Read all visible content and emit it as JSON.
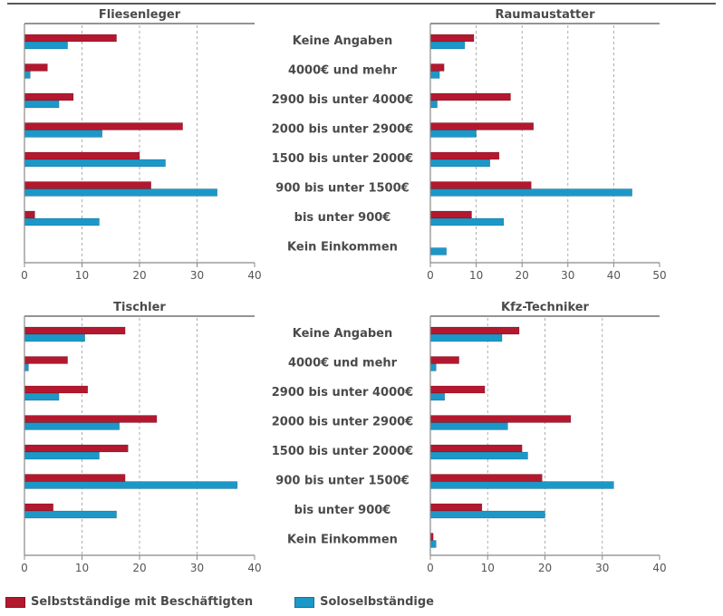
{
  "colors": {
    "selbststaendige": "#b3182f",
    "solo": "#1c98c8",
    "axis": "#888888",
    "grid": "#9a9a9a",
    "title_rule": "#555555"
  },
  "legend": {
    "selbststaendige": "Selbstständige mit Beschäftigten",
    "solo": "Soloselbständige"
  },
  "chart_data": [
    {
      "type": "bar",
      "title": "Fliesenleger",
      "orientation": "horizontal",
      "categories": [
        "Keine Angaben",
        "4000€ und mehr",
        "2900 bis unter 4000€",
        "2000 bis unter 2900€",
        "1500 bis unter 2000€",
        "900 bis unter 1500€",
        "bis unter 900€",
        "Kein Einkommen"
      ],
      "series": [
        {
          "name": "Selbstständige mit Beschäftigten",
          "values": [
            16,
            4,
            8.5,
            27.5,
            20,
            22,
            1.8,
            0
          ]
        },
        {
          "name": "Soloselbständige",
          "values": [
            7.5,
            1,
            6,
            13.5,
            24.5,
            33.5,
            13,
            0
          ]
        }
      ],
      "xlim": [
        0,
        40
      ],
      "xticks": [
        "0",
        "10",
        "20",
        "30",
        "40"
      ],
      "grid": true
    },
    {
      "type": "bar",
      "title": "Raumaustatter",
      "orientation": "horizontal",
      "categories": [
        "Keine Angaben",
        "4000€ und mehr",
        "2900 bis unter 4000€",
        "2000 bis unter 2900€",
        "1500 bis unter 2000€",
        "900 bis unter 1500€",
        "bis unter 900€",
        "Kein Einkommen"
      ],
      "series": [
        {
          "name": "Selbstständige mit Beschäftigten",
          "values": [
            9.5,
            3,
            17.5,
            22.5,
            15,
            22,
            9,
            0
          ]
        },
        {
          "name": "Soloselbständige",
          "values": [
            7.5,
            2,
            1.5,
            10,
            13,
            44,
            16,
            3.5
          ]
        }
      ],
      "xlim": [
        0,
        50
      ],
      "xticks": [
        "0",
        "10",
        "20",
        "30",
        "40",
        "50"
      ],
      "grid": true
    },
    {
      "type": "bar",
      "title": "Tischler",
      "orientation": "horizontal",
      "categories": [
        "Keine Angaben",
        "4000€ und mehr",
        "2900 bis unter 4000€",
        "2000 bis unter 2900€",
        "1500 bis unter 2000€",
        "900 bis unter 1500€",
        "bis unter 900€",
        "Kein Einkommen"
      ],
      "series": [
        {
          "name": "Selbstständige mit Beschäftigten",
          "values": [
            17.5,
            7.5,
            11,
            23,
            18,
            17.5,
            5,
            0
          ]
        },
        {
          "name": "Soloselbständige",
          "values": [
            10.5,
            0.7,
            6,
            16.5,
            13,
            37,
            16,
            0
          ]
        }
      ],
      "xlim": [
        0,
        40
      ],
      "xticks": [
        "0",
        "10",
        "20",
        "30",
        "40"
      ],
      "grid": true
    },
    {
      "type": "bar",
      "title": "Kfz-Techniker",
      "orientation": "horizontal",
      "categories": [
        "Keine Angaben",
        "4000€ und mehr",
        "2900 bis unter 4000€",
        "2000 bis unter 2900€",
        "1500 bis unter 2000€",
        "900 bis unter 1500€",
        "bis unter 900€",
        "Kein Einkommen"
      ],
      "series": [
        {
          "name": "Selbstständige mit Beschäftigten",
          "values": [
            15.5,
            5,
            9.5,
            24.5,
            16,
            19.5,
            9,
            0.5
          ]
        },
        {
          "name": "Soloselbständige",
          "values": [
            12.5,
            1,
            2.5,
            13.5,
            17,
            32,
            20,
            1
          ]
        }
      ],
      "xlim": [
        0,
        40
      ],
      "xticks": [
        "0",
        "10",
        "20",
        "30",
        "40"
      ],
      "grid": true
    }
  ]
}
